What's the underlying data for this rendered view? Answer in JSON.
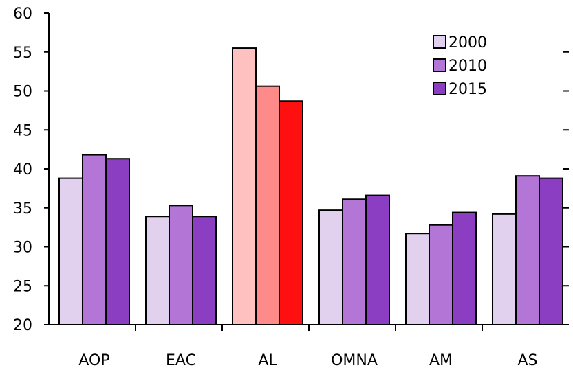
{
  "chart_data": {
    "type": "bar",
    "title": "",
    "xlabel": "",
    "ylabel": "",
    "ylim": [
      20,
      60
    ],
    "yticks": [
      20,
      25,
      30,
      35,
      40,
      45,
      50,
      55,
      60
    ],
    "categories": [
      "AOP",
      "EAC",
      "AL",
      "OMNA",
      "AM",
      "AS"
    ],
    "series": [
      {
        "name": "2000",
        "values": [
          38.8,
          33.9,
          55.5,
          34.7,
          31.7,
          34.2
        ]
      },
      {
        "name": "2010",
        "values": [
          41.8,
          35.3,
          50.6,
          36.1,
          32.8,
          39.1
        ]
      },
      {
        "name": "2015",
        "values": [
          41.3,
          33.9,
          48.7,
          36.6,
          34.4,
          38.8
        ]
      }
    ],
    "colors": {
      "series": [
        "#e1d0ee",
        "#b375d6",
        "#8b3ec2"
      ],
      "highlight_category": "AL",
      "highlight_series": [
        "#ffc0c0",
        "#ff8a8a",
        "#ff1010"
      ],
      "stroke": "#000000"
    },
    "legend": {
      "position": "top-right",
      "entries": [
        "2000",
        "2010",
        "2015"
      ]
    },
    "grid": false
  }
}
